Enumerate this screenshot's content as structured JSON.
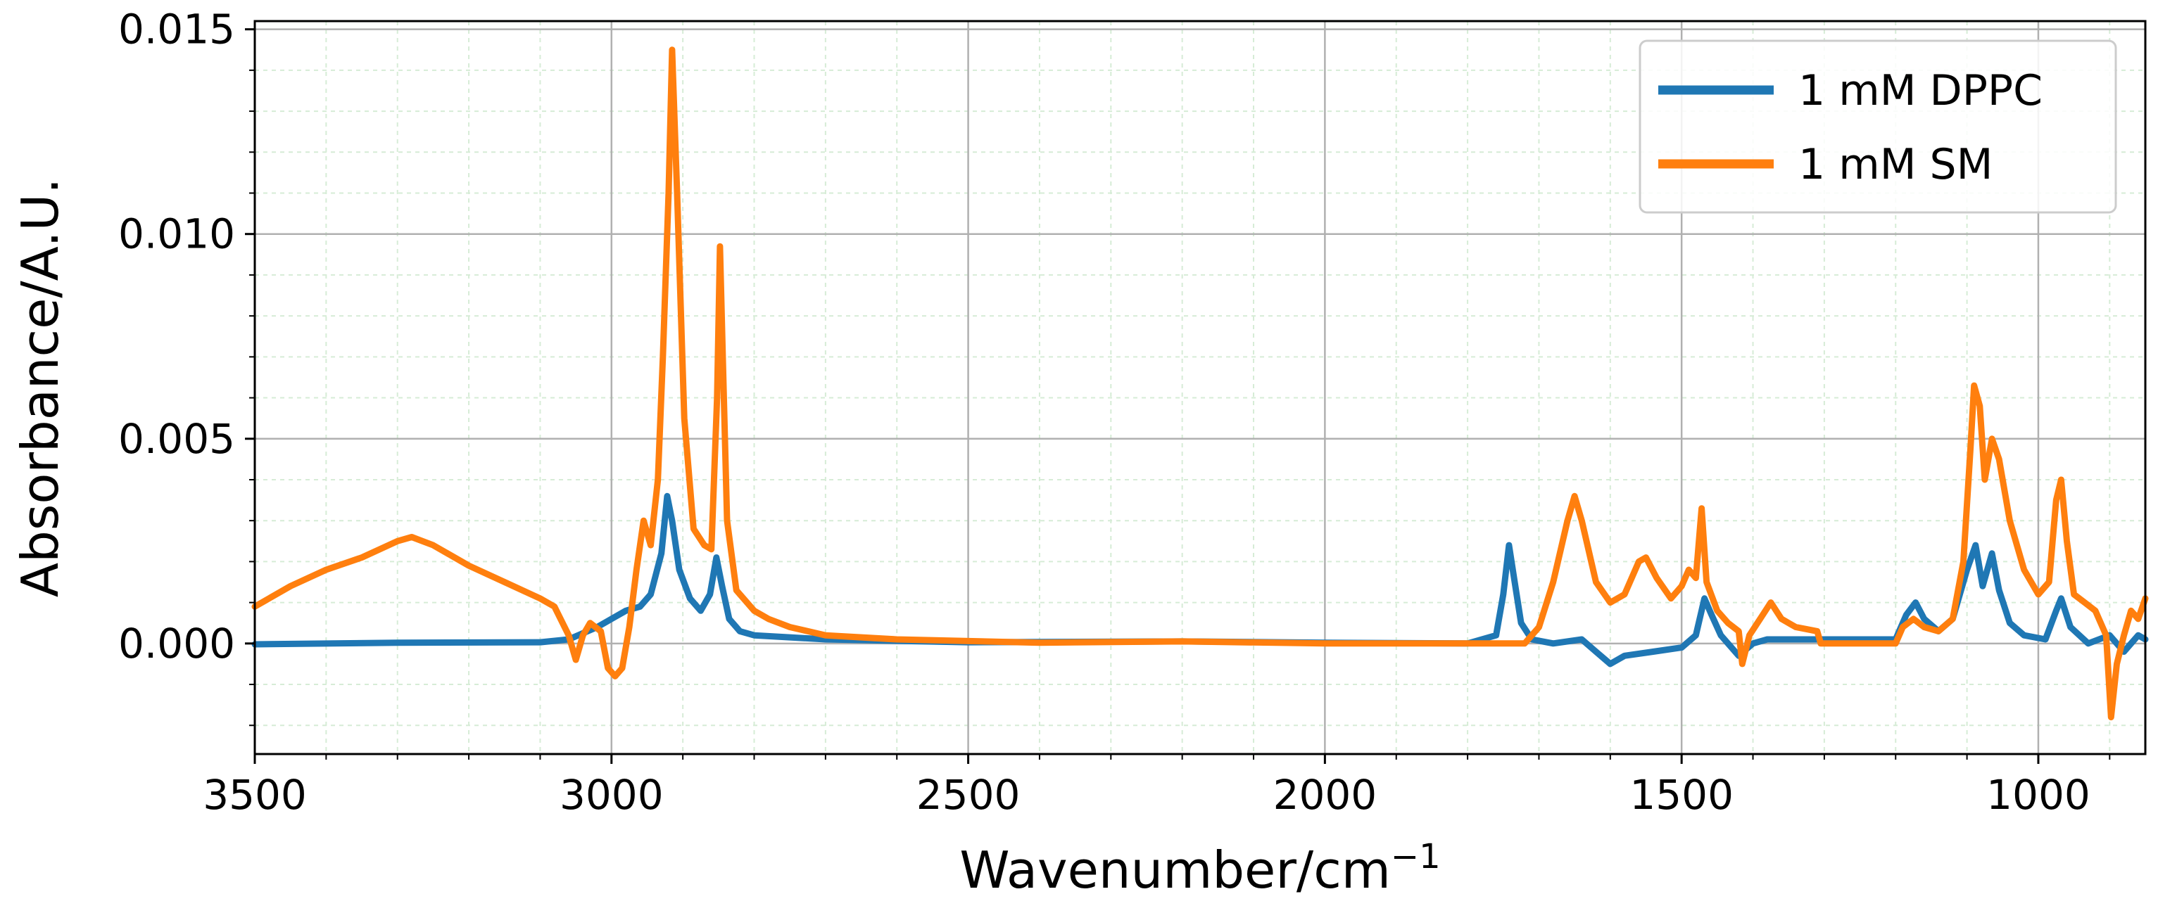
{
  "chart_data": {
    "type": "line",
    "xlabel": "Wavenumber/cm",
    "xlabel_superscript": "−1",
    "ylabel": "Absorbance/A.U.",
    "xlim": [
      3500,
      850
    ],
    "x_reversed": true,
    "ylim": [
      -0.0027,
      0.0152
    ],
    "x_ticks": [
      3500,
      3000,
      2500,
      2000,
      1500,
      1000
    ],
    "x_tick_labels": [
      "3500",
      "3000",
      "2500",
      "2000",
      "1500",
      "1000"
    ],
    "y_ticks": [
      0.0,
      0.005,
      0.01,
      0.015
    ],
    "y_tick_labels": [
      "0.000",
      "0.005",
      "0.010",
      "0.015"
    ],
    "grid": true,
    "minor_grid": true,
    "legend_position": "top-right",
    "series": [
      {
        "name": "1 mM DPPC",
        "color": "#1f77b4",
        "points": [
          [
            3500,
            -2e-05
          ],
          [
            3300,
            2e-05
          ],
          [
            3100,
            3e-05
          ],
          [
            3060,
            0.0001
          ],
          [
            3020,
            0.0004
          ],
          [
            3000,
            0.0006
          ],
          [
            2980,
            0.0008
          ],
          [
            2960,
            0.0009
          ],
          [
            2945,
            0.0012
          ],
          [
            2930,
            0.0022
          ],
          [
            2922,
            0.0036
          ],
          [
            2915,
            0.003
          ],
          [
            2905,
            0.0018
          ],
          [
            2890,
            0.0011
          ],
          [
            2875,
            0.0008
          ],
          [
            2862,
            0.0012
          ],
          [
            2853,
            0.0021
          ],
          [
            2845,
            0.0014
          ],
          [
            2835,
            0.0006
          ],
          [
            2820,
            0.0003
          ],
          [
            2800,
            0.0002
          ],
          [
            2700,
            0.0001
          ],
          [
            2500,
            3e-05
          ],
          [
            2200,
            5e-05
          ],
          [
            2000,
            2e-05
          ],
          [
            1800,
            0.0
          ],
          [
            1760,
            0.0002
          ],
          [
            1750,
            0.0012
          ],
          [
            1742,
            0.0024
          ],
          [
            1734,
            0.0015
          ],
          [
            1725,
            0.0005
          ],
          [
            1710,
            0.0001
          ],
          [
            1680,
            0.0
          ],
          [
            1640,
            0.0001
          ],
          [
            1620,
            -0.0002
          ],
          [
            1600,
            -0.0005
          ],
          [
            1580,
            -0.0003
          ],
          [
            1540,
            -0.0002
          ],
          [
            1500,
            -0.0001
          ],
          [
            1480,
            0.0002
          ],
          [
            1468,
            0.0011
          ],
          [
            1458,
            0.0007
          ],
          [
            1445,
            0.0002
          ],
          [
            1420,
            -0.0003
          ],
          [
            1400,
            0.0
          ],
          [
            1380,
            0.0001
          ],
          [
            1300,
            0.0001
          ],
          [
            1200,
            0.0001
          ],
          [
            1185,
            0.0007
          ],
          [
            1172,
            0.001
          ],
          [
            1160,
            0.0006
          ],
          [
            1140,
            0.0003
          ],
          [
            1120,
            0.0006
          ],
          [
            1100,
            0.0018
          ],
          [
            1088,
            0.0024
          ],
          [
            1078,
            0.0014
          ],
          [
            1065,
            0.0022
          ],
          [
            1055,
            0.0013
          ],
          [
            1040,
            0.0005
          ],
          [
            1020,
            0.0002
          ],
          [
            990,
            0.0001
          ],
          [
            975,
            0.0008
          ],
          [
            968,
            0.0011
          ],
          [
            955,
            0.0004
          ],
          [
            930,
            0.0
          ],
          [
            900,
            0.0002
          ],
          [
            880,
            -0.0002
          ],
          [
            860,
            0.0002
          ],
          [
            850,
            0.0001
          ]
        ]
      },
      {
        "name": "1 mM SM",
        "color": "#ff7f0e",
        "points": [
          [
            3500,
            0.0009
          ],
          [
            3450,
            0.0014
          ],
          [
            3400,
            0.0018
          ],
          [
            3350,
            0.0021
          ],
          [
            3300,
            0.0025
          ],
          [
            3280,
            0.0026
          ],
          [
            3250,
            0.0024
          ],
          [
            3200,
            0.0019
          ],
          [
            3150,
            0.0015
          ],
          [
            3100,
            0.0011
          ],
          [
            3080,
            0.0009
          ],
          [
            3060,
            0.0002
          ],
          [
            3050,
            -0.0004
          ],
          [
            3040,
            0.0002
          ],
          [
            3030,
            0.0005
          ],
          [
            3015,
            0.0003
          ],
          [
            3005,
            -0.0006
          ],
          [
            2995,
            -0.0008
          ],
          [
            2985,
            -0.0006
          ],
          [
            2975,
            0.0004
          ],
          [
            2965,
            0.0018
          ],
          [
            2955,
            0.003
          ],
          [
            2945,
            0.0024
          ],
          [
            2935,
            0.004
          ],
          [
            2928,
            0.007
          ],
          [
            2920,
            0.011
          ],
          [
            2915,
            0.0145
          ],
          [
            2908,
            0.011
          ],
          [
            2898,
            0.0055
          ],
          [
            2885,
            0.0028
          ],
          [
            2870,
            0.0024
          ],
          [
            2860,
            0.0023
          ],
          [
            2852,
            0.006
          ],
          [
            2848,
            0.0097
          ],
          [
            2844,
            0.007
          ],
          [
            2838,
            0.003
          ],
          [
            2825,
            0.0013
          ],
          [
            2800,
            0.0008
          ],
          [
            2780,
            0.0006
          ],
          [
            2750,
            0.0004
          ],
          [
            2700,
            0.0002
          ],
          [
            2600,
            0.0001
          ],
          [
            2400,
            2e-05
          ],
          [
            2200,
            5e-05
          ],
          [
            2000,
            0.0
          ],
          [
            1800,
            0.0
          ],
          [
            1720,
            0.0
          ],
          [
            1700,
            0.0004
          ],
          [
            1680,
            0.0015
          ],
          [
            1660,
            0.003
          ],
          [
            1650,
            0.0036
          ],
          [
            1640,
            0.003
          ],
          [
            1620,
            0.0015
          ],
          [
            1600,
            0.001
          ],
          [
            1580,
            0.0012
          ],
          [
            1560,
            0.002
          ],
          [
            1550,
            0.0021
          ],
          [
            1535,
            0.0016
          ],
          [
            1515,
            0.0011
          ],
          [
            1500,
            0.0014
          ],
          [
            1490,
            0.0018
          ],
          [
            1480,
            0.0016
          ],
          [
            1472,
            0.0033
          ],
          [
            1465,
            0.0015
          ],
          [
            1450,
            0.0008
          ],
          [
            1435,
            0.0005
          ],
          [
            1420,
            0.0003
          ],
          [
            1415,
            -0.0005
          ],
          [
            1405,
            0.0002
          ],
          [
            1390,
            0.0006
          ],
          [
            1375,
            0.001
          ],
          [
            1360,
            0.0006
          ],
          [
            1340,
            0.0004
          ],
          [
            1310,
            0.0003
          ],
          [
            1305,
            0.0
          ],
          [
            1200,
            0.0
          ],
          [
            1190,
            0.0004
          ],
          [
            1175,
            0.0006
          ],
          [
            1160,
            0.0004
          ],
          [
            1140,
            0.0003
          ],
          [
            1120,
            0.0006
          ],
          [
            1105,
            0.002
          ],
          [
            1095,
            0.0048
          ],
          [
            1090,
            0.0063
          ],
          [
            1082,
            0.0058
          ],
          [
            1075,
            0.004
          ],
          [
            1065,
            0.005
          ],
          [
            1055,
            0.0045
          ],
          [
            1040,
            0.003
          ],
          [
            1020,
            0.0018
          ],
          [
            1000,
            0.0012
          ],
          [
            985,
            0.0015
          ],
          [
            975,
            0.0035
          ],
          [
            968,
            0.004
          ],
          [
            960,
            0.0025
          ],
          [
            950,
            0.0012
          ],
          [
            935,
            0.001
          ],
          [
            920,
            0.0008
          ],
          [
            905,
            0.0002
          ],
          [
            898,
            -0.0018
          ],
          [
            890,
            -0.0005
          ],
          [
            880,
            0.0002
          ],
          [
            870,
            0.0008
          ],
          [
            860,
            0.0006
          ],
          [
            850,
            0.0011
          ]
        ]
      }
    ]
  }
}
